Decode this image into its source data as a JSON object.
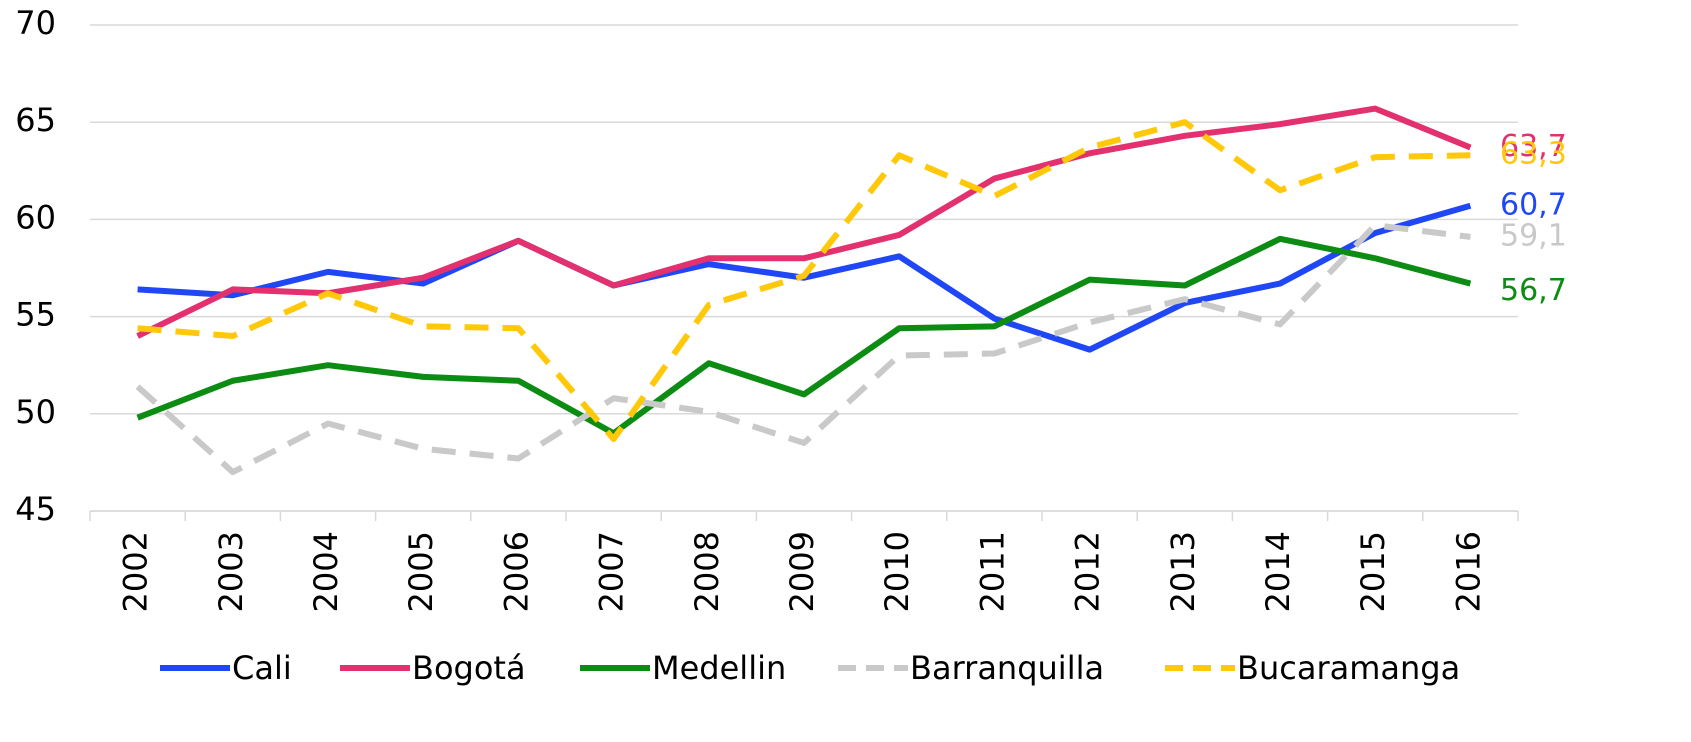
{
  "chart_data": {
    "type": "line",
    "categories": [
      "2002",
      "2003",
      "2004",
      "2005",
      "2006",
      "2007",
      "2008",
      "2009",
      "2010",
      "2011",
      "2012",
      "2013",
      "2014",
      "2015",
      "2016"
    ],
    "ylim": [
      45,
      70
    ],
    "yticks": [
      45,
      50,
      55,
      60,
      65,
      70
    ],
    "grid": true,
    "legend": "bottom",
    "series": [
      {
        "name": "Cali",
        "color": "#1f47f5",
        "style": "solid",
        "values": [
          56.4,
          56.1,
          57.3,
          56.7,
          58.9,
          56.6,
          57.7,
          57.0,
          58.1,
          54.9,
          53.3,
          55.7,
          56.7,
          59.3,
          60.7
        ],
        "value_labels": [
          null,
          null,
          null,
          null,
          null,
          null,
          null,
          null,
          null,
          null,
          null,
          null,
          null,
          null,
          "60,7"
        ]
      },
      {
        "name": "Bogotá",
        "color": "#e3306e",
        "style": "solid",
        "values": [
          54.0,
          56.4,
          56.2,
          57.0,
          58.9,
          56.6,
          58.0,
          58.0,
          59.2,
          62.1,
          63.4,
          64.3,
          64.9,
          65.7,
          63.7
        ],
        "value_labels": [
          null,
          null,
          null,
          null,
          null,
          null,
          null,
          null,
          null,
          null,
          null,
          null,
          null,
          null,
          "63,7"
        ]
      },
      {
        "name": "Medellin",
        "color": "#0c8c12",
        "style": "solid",
        "values": [
          49.8,
          51.7,
          52.5,
          51.9,
          51.7,
          49.0,
          52.6,
          51.0,
          54.4,
          54.5,
          56.9,
          56.6,
          59.0,
          58.0,
          56.7
        ],
        "value_labels": [
          null,
          null,
          null,
          null,
          null,
          null,
          null,
          null,
          null,
          null,
          null,
          null,
          null,
          null,
          "56,7"
        ]
      },
      {
        "name": "Barranquilla",
        "color": "#c9c9c9",
        "style": "dashed",
        "values": [
          51.4,
          47.0,
          49.5,
          48.2,
          47.7,
          50.8,
          50.1,
          48.5,
          53.0,
          53.1,
          54.7,
          55.9,
          54.6,
          59.7,
          59.1
        ],
        "value_labels": [
          null,
          null,
          null,
          null,
          null,
          null,
          null,
          null,
          null,
          null,
          null,
          null,
          null,
          null,
          "59,1"
        ]
      },
      {
        "name": "Bucaramanga",
        "color": "#ffc809",
        "style": "dashed",
        "values": [
          54.4,
          54.0,
          56.2,
          54.5,
          54.4,
          48.7,
          55.6,
          57.1,
          63.3,
          61.2,
          63.7,
          65.0,
          61.5,
          63.2,
          63.3
        ],
        "value_labels": [
          null,
          null,
          null,
          null,
          null,
          null,
          null,
          null,
          null,
          null,
          null,
          null,
          null,
          null,
          "63,3"
        ]
      }
    ]
  }
}
